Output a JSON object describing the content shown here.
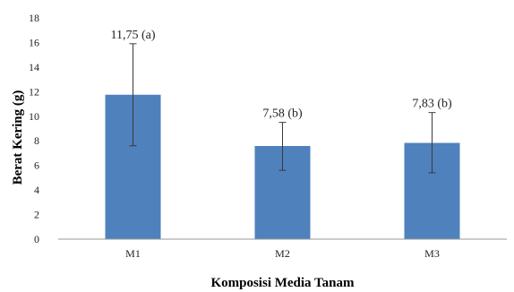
{
  "chart_data": {
    "type": "bar",
    "categories": [
      "M1",
      "M2",
      "M3"
    ],
    "values": [
      11.75,
      7.58,
      7.83
    ],
    "error_high": [
      15.9,
      9.5,
      10.3
    ],
    "error_low": [
      7.6,
      5.6,
      5.4
    ],
    "data_labels": [
      "11,75 (a)",
      "7,58 (b)",
      "7,83 (b)"
    ],
    "title": "",
    "xlabel": "Komposisi Media Tanam",
    "ylabel": "Berat Kering (g)",
    "ylim": [
      0,
      18
    ],
    "yticks": [
      0,
      2,
      4,
      6,
      8,
      10,
      12,
      14,
      16,
      18
    ],
    "grid": false,
    "legend": "none",
    "bar_color": "#4f81bd",
    "error_bar_color": "#3a3a3a",
    "axis_color": "#9a9a9a"
  }
}
